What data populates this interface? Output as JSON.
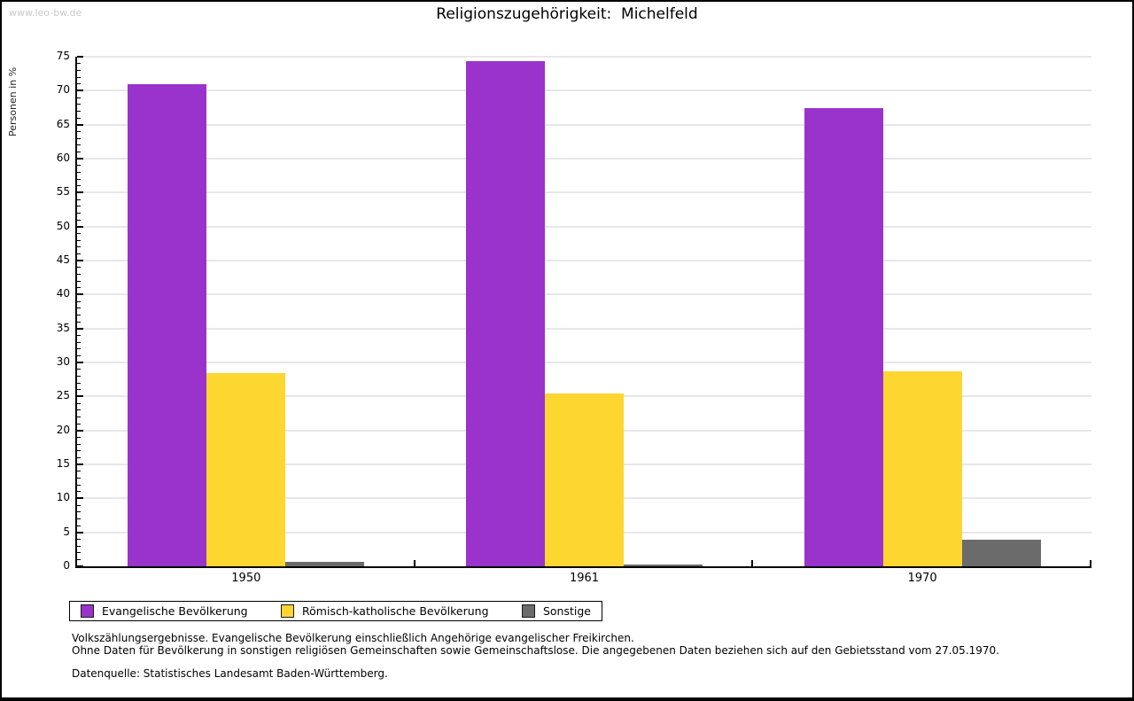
{
  "watermark": "www.leo-bw.de",
  "chart_data": {
    "type": "bar",
    "title": "Religionszugehörigkeit:  Michelfeld",
    "ylabel": "Personen in %",
    "xlabel": "",
    "categories": [
      "1950",
      "1961",
      "1970"
    ],
    "series": [
      {
        "name": "Evangelische Bevölkerung",
        "color": "#9933CC",
        "values": [
          71.0,
          74.3,
          67.4
        ]
      },
      {
        "name": "Römisch-katholische Bevölkerung",
        "color": "#FDD630",
        "values": [
          28.5,
          25.4,
          28.7
        ]
      },
      {
        "name": "Sonstige",
        "color": "#6B6B6B",
        "values": [
          0.6,
          0.3,
          3.9
        ]
      }
    ],
    "ylim": [
      0,
      75
    ],
    "ytick_step": 5,
    "minor_tick_step": 1,
    "grid": true,
    "legend_position": "bottom-left-outside"
  },
  "footer": {
    "line1": "Volkszählungsergebnisse. Evangelische Bevölkerung einschließlich Angehörige evangelischer Freikirchen.",
    "line2": "Ohne Daten für Bevölkerung in sonstigen religiösen Gemeinschaften sowie Gemeinschaftslose. Die angegebenen Daten beziehen sich auf den Gebietsstand vom 27.05.1970.",
    "source": "Datenquelle: Statistisches Landesamt Baden-Württemberg."
  },
  "colors": {
    "evangelisch": "#9933CC",
    "katholisch": "#FDD630",
    "sonstige": "#6B6B6B",
    "grid": "#E7E7E7",
    "axis": "#000000",
    "watermark": "#C9C9C9"
  }
}
